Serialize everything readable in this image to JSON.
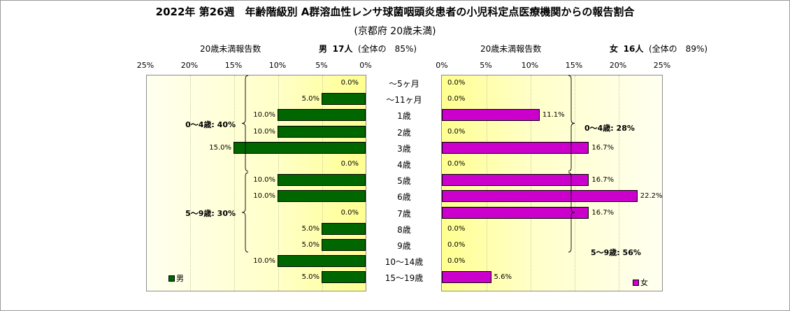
{
  "title": "2022年 第26週　年齢階級別 A群溶血性レンサ球菌咽頭炎患者の小児科定点医療機関からの報告割合",
  "subtitle": "(京都府 20歳未満)",
  "header": {
    "male_axis_label": "20歳未満報告数",
    "male_summary_sex": "男",
    "male_summary_count": "17人",
    "male_summary_share": "(全体の　85%)",
    "female_axis_label": "20歳未満報告数",
    "female_summary_sex": "女",
    "female_summary_count": "16人",
    "female_summary_share": "(全体の　89%)"
  },
  "chart_data": {
    "type": "bar",
    "orientation": "horizontal-population-pyramid",
    "categories": [
      "～5ヶ月",
      "～11ヶ月",
      "1歳",
      "2歳",
      "3歳",
      "4歳",
      "5歳",
      "6歳",
      "7歳",
      "8歳",
      "9歳",
      "10～14歳",
      "15～19歳"
    ],
    "series": [
      {
        "name": "男",
        "color": "#006600",
        "values": [
          0.0,
          5.0,
          10.0,
          10.0,
          15.0,
          0.0,
          10.0,
          10.0,
          0.0,
          5.0,
          5.0,
          10.0,
          5.0
        ],
        "labels": [
          "0.0%",
          "5.0%",
          "10.0%",
          "10.0%",
          "15.0%",
          "0.0%",
          "10.0%",
          "10.0%",
          "0.0%",
          "5.0%",
          "5.0%",
          "10.0%",
          "5.0%"
        ]
      },
      {
        "name": "女",
        "color": "#cc00cc",
        "values": [
          0.0,
          0.0,
          11.1,
          0.0,
          16.7,
          0.0,
          16.7,
          22.2,
          16.7,
          0.0,
          0.0,
          0.0,
          5.6
        ],
        "labels": [
          "0.0%",
          "0.0%",
          "11.1%",
          "0.0%",
          "16.7%",
          "0.0%",
          "16.7%",
          "22.2%",
          "16.7%",
          "0.0%",
          "0.0%",
          "0.0%",
          "5.6%"
        ]
      }
    ],
    "male_ticks": [
      "25%",
      "20%",
      "15%",
      "10%",
      "5%",
      "0%"
    ],
    "female_ticks": [
      "0%",
      "5%",
      "10%",
      "15%",
      "20%",
      "25%"
    ],
    "xlim": [
      0,
      25
    ],
    "groups": {
      "male": [
        {
          "label": "0～4歳: 40%",
          "first": 0,
          "last": 5
        },
        {
          "label": "5～9歳: 30%",
          "first": 6,
          "last": 10
        }
      ],
      "female": [
        {
          "label": "0～4歳: 28%",
          "first": 0,
          "last": 5
        },
        {
          "label": "5～9歳: 56%",
          "first": 6,
          "last": 10
        }
      ]
    },
    "legend": {
      "male": "男",
      "female": "女"
    }
  }
}
